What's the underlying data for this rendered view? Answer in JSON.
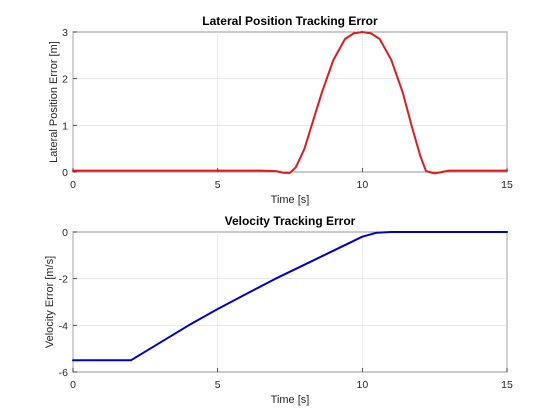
{
  "chart_data": [
    {
      "type": "line",
      "title": "Lateral Position Tracking Error",
      "xlabel": "Time [s]",
      "ylabel": "Lateral Position Error [m]",
      "xlim": [
        0,
        15
      ],
      "ylim": [
        0,
        3
      ],
      "xticks": [
        "0",
        "5",
        "10",
        "15"
      ],
      "yticks": [
        "0",
        "1",
        "2",
        "3"
      ],
      "grid": true,
      "series": [
        {
          "color": "#e31a1c",
          "x": [
            0,
            5,
            6.5,
            7.0,
            7.3,
            7.5,
            7.7,
            8.0,
            8.3,
            8.6,
            9.0,
            9.4,
            9.7,
            10.0,
            10.3,
            10.6,
            11.0,
            11.4,
            11.7,
            12.0,
            12.2,
            12.5,
            13.0,
            15
          ],
          "y": [
            0.03,
            0.03,
            0.03,
            0.02,
            -0.02,
            -0.02,
            0.1,
            0.5,
            1.1,
            1.7,
            2.4,
            2.85,
            2.97,
            3.0,
            2.97,
            2.85,
            2.4,
            1.7,
            1.0,
            0.35,
            0.02,
            -0.03,
            0.03,
            0.03
          ]
        }
      ]
    },
    {
      "type": "line",
      "title": "Velocity Tracking Error",
      "xlabel": "Time [s]",
      "ylabel": "Velocity Error [m/s]",
      "xlim": [
        0,
        15
      ],
      "ylim": [
        -6,
        0
      ],
      "xticks": [
        "0",
        "5",
        "10",
        "15"
      ],
      "yticks": [
        "-6",
        "-4",
        "-2",
        "0"
      ],
      "grid": true,
      "series": [
        {
          "color": "#0000cd",
          "x": [
            0,
            2.0,
            3.0,
            4.0,
            5.0,
            6.0,
            7.0,
            8.0,
            9.0,
            10.0,
            10.5,
            11.0,
            12.0,
            15
          ],
          "y": [
            -5.5,
            -5.5,
            -4.75,
            -4.0,
            -3.3,
            -2.65,
            -2.0,
            -1.4,
            -0.8,
            -0.2,
            -0.03,
            0,
            0,
            0
          ]
        }
      ]
    }
  ]
}
